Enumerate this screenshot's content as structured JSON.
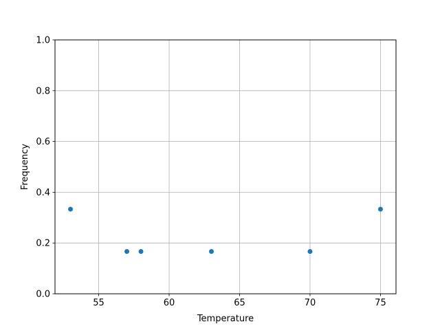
{
  "chart_data": {
    "type": "scatter",
    "title": "",
    "xlabel": "Temperature",
    "ylabel": "Frequency",
    "xlim": [
      51.9,
      76.1
    ],
    "ylim": [
      0,
      1.0
    ],
    "xticks": [
      55,
      60,
      65,
      70,
      75
    ],
    "yticks": [
      0.0,
      0.2,
      0.4,
      0.6,
      0.8,
      1.0
    ],
    "xtick_labels": [
      "55",
      "60",
      "65",
      "70",
      "75"
    ],
    "ytick_labels": [
      "0.0",
      "0.2",
      "0.4",
      "0.6",
      "0.8",
      "1.0"
    ],
    "grid": true,
    "points": [
      {
        "x": 53,
        "y": 0.3333
      },
      {
        "x": 57,
        "y": 0.1667
      },
      {
        "x": 58,
        "y": 0.1667
      },
      {
        "x": 63,
        "y": 0.1667
      },
      {
        "x": 70,
        "y": 0.1667
      },
      {
        "x": 75,
        "y": 0.3333
      }
    ],
    "colors": {
      "marker": "#1f77b4",
      "grid": "#b0b0b0"
    }
  }
}
